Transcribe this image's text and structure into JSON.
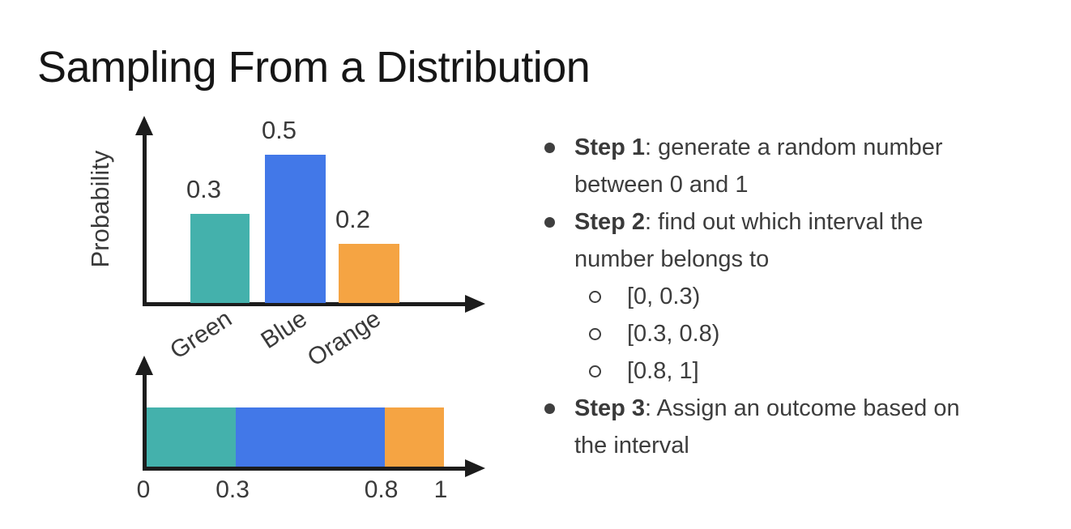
{
  "title": "Sampling From a Distribution",
  "colors": {
    "green": "#44B1AC",
    "blue": "#4278E8",
    "orange": "#F5A443",
    "axis": "#1C1C1C",
    "text": "#3D3D3D"
  },
  "chart_data": [
    {
      "type": "bar",
      "categories": [
        "Green",
        "Blue",
        "Orange"
      ],
      "values": [
        0.3,
        0.5,
        0.2
      ],
      "value_labels": [
        "0.3",
        "0.5",
        "0.2"
      ],
      "bar_colors": [
        "#44B1AC",
        "#4278E8",
        "#F5A443"
      ],
      "title": "",
      "xlabel": "",
      "ylabel": "Probability",
      "ylim": [
        0,
        0.6
      ],
      "grid": false,
      "legend": false
    },
    {
      "type": "area",
      "note": "horizontal stacked interval bar on a 0-1 number line",
      "segments": [
        {
          "label": "Green",
          "start": 0,
          "end": 0.3,
          "color": "#44B1AC"
        },
        {
          "label": "Blue",
          "start": 0.3,
          "end": 0.8,
          "color": "#4278E8"
        },
        {
          "label": "Orange",
          "start": 0.8,
          "end": 1,
          "color": "#F5A443"
        }
      ],
      "tick_values": [
        0,
        0.3,
        0.8,
        1
      ],
      "tick_labels": [
        "0",
        "0.3",
        "0.8",
        "1"
      ],
      "xlim": [
        0,
        1
      ],
      "grid": false
    }
  ],
  "steps": [
    {
      "label": "Step 1",
      "lines": [
        ": generate a random number",
        "between 0 and 1"
      ],
      "sub_items": []
    },
    {
      "label": "Step 2",
      "lines": [
        ": find out which interval the",
        "number belongs to"
      ],
      "sub_items": [
        "[0, 0.3)",
        "[0.3, 0.8)",
        "[0.8, 1]"
      ]
    },
    {
      "label": "Step 3",
      "lines": [
        ": Assign an outcome based on",
        "the interval"
      ],
      "sub_items": []
    }
  ]
}
